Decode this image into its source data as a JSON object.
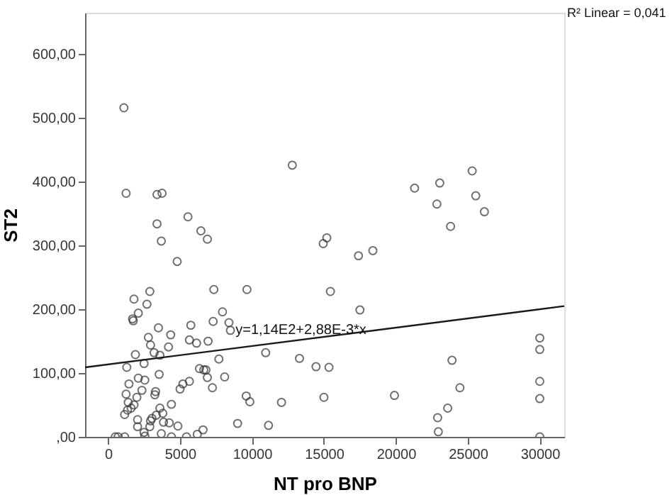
{
  "chart_data": {
    "type": "scatter",
    "xlabel": "NT pro BNP",
    "ylabel": "ST2",
    "xlim": [
      -1600,
      31700
    ],
    "ylim": [
      0,
      665
    ],
    "xticks": [
      0,
      5000,
      10000,
      15000,
      20000,
      25000,
      30000
    ],
    "yticks": [
      {
        "value": 0,
        "label": ",00"
      },
      {
        "value": 100,
        "label": "100,00"
      },
      {
        "value": 200,
        "label": "200,00"
      },
      {
        "value": 300,
        "label": "300,00"
      },
      {
        "value": 400,
        "label": "400,00"
      },
      {
        "value": 500,
        "label": "500,00"
      },
      {
        "value": 600,
        "label": "600,00"
      }
    ],
    "grid": false,
    "marker": "circle",
    "series": [
      {
        "color": "#333333",
        "x": [
          1100,
          1250,
          3400,
          3750,
          3400,
          3700,
          5550,
          6450,
          6900,
          12800,
          15200,
          14950,
          25300,
          23050,
          21300,
          25550,
          22850,
          26150,
          23800,
          18400,
          17400,
          15450,
          17500,
          30000,
          30000,
          23900,
          24450,
          30000,
          30000,
          15000,
          19900,
          23600,
          22900,
          22950,
          30000,
          4800,
          7350,
          9650,
          2900,
          1800,
          2700,
          2100,
          1700,
          1750,
          7950,
          8400,
          8500,
          7300,
          5750,
          3500,
          4350,
          6950,
          5650,
          6150,
          2800,
          2950,
          4200,
          3200,
          3600,
          1900,
          10950,
          13300,
          7700,
          15350,
          14450,
          2500,
          1300,
          6350,
          6650,
          6800,
          6900,
          8100,
          3550,
          2100,
          2550,
          5650,
          5200,
          5000,
          7250,
          1450,
          2350,
          3300,
          3250,
          9600,
          9850,
          12050,
          1250,
          2000,
          1400,
          1800,
          1600,
          1350,
          1150,
          4400,
          3600,
          3800,
          3350,
          3050,
          2950,
          2050,
          2050,
          2900,
          3850,
          4250,
          4850,
          9000,
          11150,
          6600,
          2500,
          3700,
          6200,
          500,
          700,
          1150,
          2550,
          4400,
          5450
        ],
        "values": [
          516,
          382,
          380,
          382,
          334,
          307,
          345,
          323,
          310,
          426,
          312,
          303,
          417,
          398,
          390,
          378,
          365,
          353,
          330,
          292,
          284,
          228,
          199,
          155,
          137,
          120,
          77,
          87,
          60,
          62,
          65,
          45,
          30,
          8,
          0,
          275,
          231,
          231,
          228,
          216,
          208,
          194,
          185,
          182,
          196,
          179,
          167,
          181,
          175,
          171,
          160,
          150,
          152,
          147,
          156,
          144,
          141,
          132,
          128,
          129,
          132,
          123,
          122,
          109,
          110,
          115,
          109,
          107,
          105,
          105,
          93,
          94,
          98,
          92,
          89,
          87,
          83,
          75,
          77,
          83,
          73,
          71,
          66,
          64,
          55,
          54,
          67,
          62,
          54,
          50,
          45,
          42,
          35,
          51,
          45,
          37,
          34,
          29,
          25,
          27,
          16,
          16,
          23,
          22,
          17,
          21,
          18,
          11,
          7,
          5,
          4,
          0,
          0,
          0,
          1,
          0,
          0
        ]
      },
      {
        "type": "line",
        "color": "#1a1a1a",
        "line_style": "solid",
        "marker": "none",
        "x": [
          -1600,
          31700
        ],
        "values": [
          109,
          205
        ]
      }
    ],
    "annotations": [
      "R² Linear = 0,041",
      {
        "text": "y=1,14E2+2,88E-3*x",
        "x": 13400,
        "y": 152
      }
    ]
  }
}
